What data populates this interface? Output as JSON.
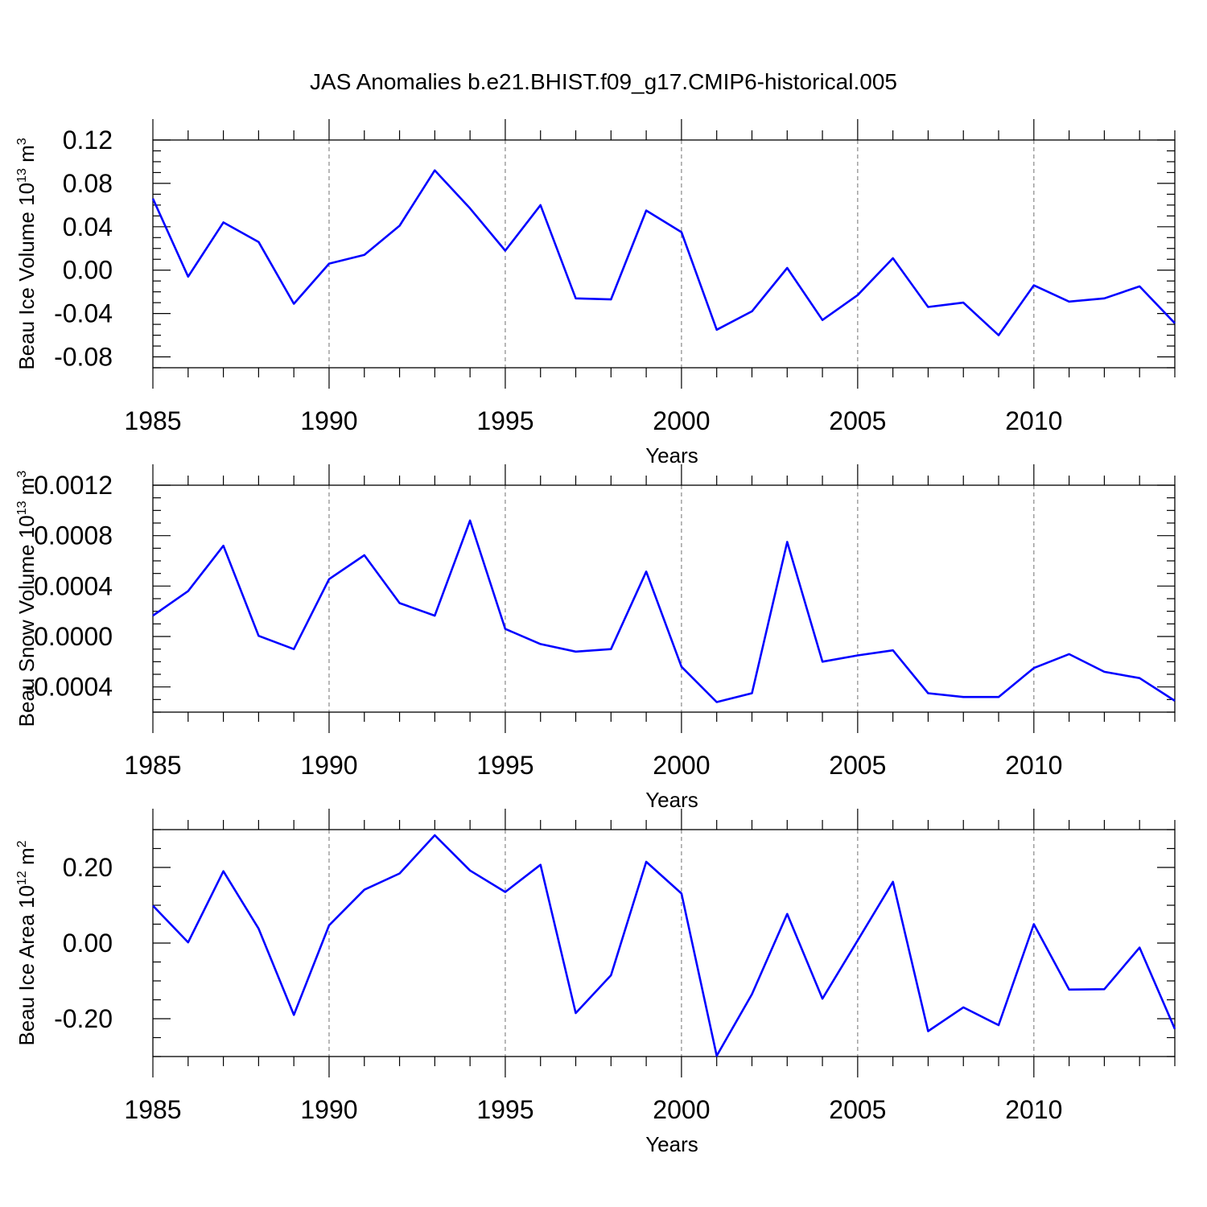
{
  "title": "JAS Anomalies b.e21.BHIST.f09_g17.CMIP6-historical.005",
  "line_color": "#0000ff",
  "chart_data": [
    {
      "type": "line",
      "xlabel": "Years",
      "ylabel": "Beau Ice Volume 10",
      "ylabel_exp": "13",
      "ylabel_unit": "m",
      "ylabel_unit_exp": "3",
      "xlim": [
        1985,
        2014
      ],
      "ylim": [
        -0.09,
        0.12
      ],
      "xticks": [
        1985,
        1990,
        1995,
        2000,
        2005,
        2010
      ],
      "yticks": [
        -0.08,
        -0.04,
        0.0,
        0.04,
        0.08,
        0.12
      ],
      "ytick_labels": [
        "-0.08",
        "-0.04",
        "0.00",
        "0.04",
        "0.08",
        "0.12"
      ],
      "x": [
        1985,
        1986,
        1987,
        1988,
        1989,
        1990,
        1991,
        1992,
        1993,
        1994,
        1995,
        1996,
        1997,
        1998,
        1999,
        2000,
        2001,
        2002,
        2003,
        2004,
        2005,
        2006,
        2007,
        2008,
        2009,
        2010,
        2011,
        2012,
        2013,
        2014
      ],
      "y": [
        0.066,
        -0.006,
        0.044,
        0.026,
        -0.031,
        0.006,
        0.014,
        0.041,
        0.092,
        0.057,
        0.018,
        0.06,
        -0.026,
        -0.027,
        0.055,
        0.035,
        -0.055,
        -0.038,
        0.002,
        -0.046,
        -0.023,
        0.011,
        -0.034,
        -0.03,
        -0.06,
        -0.014,
        -0.029,
        -0.026,
        -0.015,
        -0.049
      ]
    },
    {
      "type": "line",
      "xlabel": "Years",
      "ylabel": "Beau Snow Volume 10",
      "ylabel_exp": "13",
      "ylabel_unit": "m",
      "ylabel_unit_exp": "3",
      "xlim": [
        1985,
        2014
      ],
      "ylim": [
        -0.0006,
        0.0012
      ],
      "xticks": [
        1985,
        1990,
        1995,
        2000,
        2005,
        2010
      ],
      "yticks": [
        -0.0004,
        0.0,
        0.0004,
        0.0008,
        0.0012
      ],
      "ytick_labels": [
        "-0.0004",
        "0.0000",
        "0.0004",
        "0.0008",
        "0.0012"
      ],
      "x": [
        1985,
        1986,
        1987,
        1988,
        1989,
        1990,
        1991,
        1992,
        1993,
        1994,
        1995,
        1996,
        1997,
        1998,
        1999,
        2000,
        2001,
        2002,
        2003,
        2004,
        2005,
        2006,
        2007,
        2008,
        2009,
        2010,
        2011,
        2012,
        2013,
        2014
      ],
      "y": [
        0.000165,
        0.00036,
        0.00072,
        5e-06,
        -0.0001,
        0.000455,
        0.000645,
        0.000265,
        0.000165,
        0.00092,
        6e-05,
        -6e-05,
        -0.00012,
        -0.0001,
        0.000515,
        -0.00024,
        -0.00052,
        -0.00045,
        0.00075,
        -0.0002,
        -0.00015,
        -0.00011,
        -0.00045,
        -0.00048,
        -0.00048,
        -0.00025,
        -0.00014,
        -0.00028,
        -0.00033,
        -0.00051
      ]
    },
    {
      "type": "line",
      "xlabel": "Years",
      "ylabel": "Beau Ice Area 10",
      "ylabel_exp": "12",
      "ylabel_unit": "m",
      "ylabel_unit_exp": "2",
      "xlim": [
        1985,
        2014
      ],
      "ylim": [
        -0.3,
        0.3
      ],
      "xticks": [
        1985,
        1990,
        1995,
        2000,
        2005,
        2010
      ],
      "yticks": [
        -0.2,
        0.0,
        0.2
      ],
      "ytick_labels": [
        "-0.20",
        "0.00",
        "0.20"
      ],
      "x": [
        1985,
        1986,
        1987,
        1988,
        1989,
        1990,
        1991,
        1992,
        1993,
        1994,
        1995,
        1996,
        1997,
        1998,
        1999,
        2000,
        2001,
        2002,
        2003,
        2004,
        2005,
        2006,
        2007,
        2008,
        2009,
        2010,
        2011,
        2012,
        2013,
        2014
      ],
      "y": [
        0.099,
        0.002,
        0.19,
        0.038,
        -0.19,
        0.047,
        0.141,
        0.184,
        0.285,
        0.192,
        0.135,
        0.207,
        -0.185,
        -0.085,
        0.215,
        0.131,
        -0.298,
        -0.135,
        0.077,
        -0.147,
        0.007,
        0.162,
        -0.233,
        -0.17,
        -0.217,
        0.05,
        -0.123,
        -0.122,
        -0.012,
        -0.227
      ]
    }
  ]
}
